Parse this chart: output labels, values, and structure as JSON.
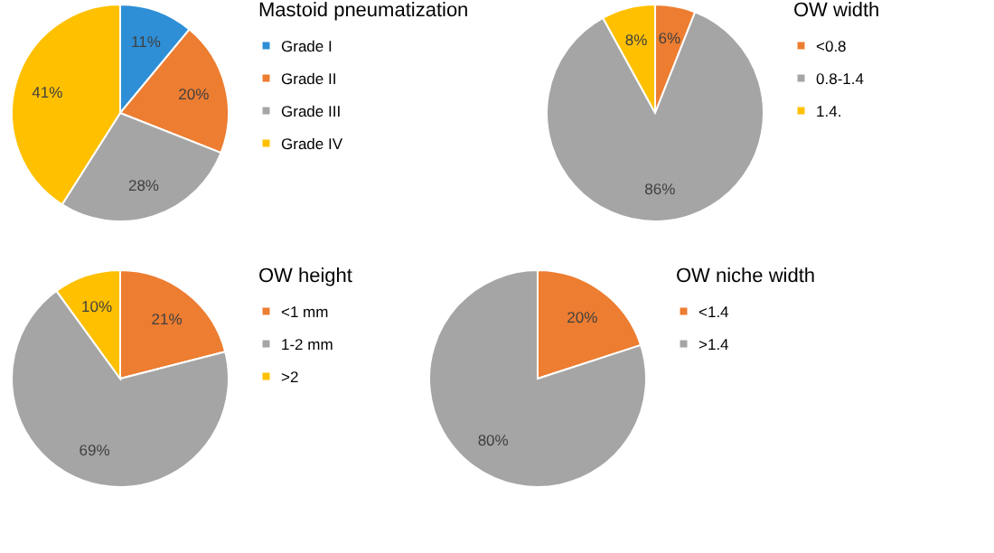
{
  "chart_data": [
    {
      "type": "pie",
      "legend_title": "Mastoid pneumatization",
      "categories": [
        "Grade I",
        "Grade II",
        "Grade III",
        "Grade IV"
      ],
      "values": [
        11,
        20,
        28,
        41
      ],
      "colors": [
        "#2e8fd6",
        "#ed7d31",
        "#a5a5a5",
        "#ffc000"
      ],
      "value_labels": [
        "11%",
        "20%",
        "28%",
        "41%"
      ],
      "legend": "right"
    },
    {
      "type": "pie",
      "legend_title": "OW width",
      "categories": [
        "<0.8",
        "0.8-1.4",
        "1.4."
      ],
      "values": [
        6,
        86,
        8
      ],
      "colors": [
        "#ed7d31",
        "#a5a5a5",
        "#ffc000"
      ],
      "value_labels": [
        "6%",
        "86%",
        "8%"
      ],
      "legend": "right"
    },
    {
      "type": "pie",
      "legend_title": "OW height",
      "categories": [
        "<1 mm",
        "1-2 mm",
        ">2"
      ],
      "values": [
        21,
        69,
        10
      ],
      "colors": [
        "#ed7d31",
        "#a5a5a5",
        "#ffc000"
      ],
      "value_labels": [
        "21%",
        "69%",
        "10%"
      ],
      "legend": "right"
    },
    {
      "type": "pie",
      "legend_title": "OW niche width",
      "categories": [
        "<1.4",
        ">1.4"
      ],
      "values": [
        20,
        80
      ],
      "colors": [
        "#ed7d31",
        "#a5a5a5"
      ],
      "value_labels": [
        "20%",
        "80%"
      ],
      "legend": "right"
    }
  ]
}
